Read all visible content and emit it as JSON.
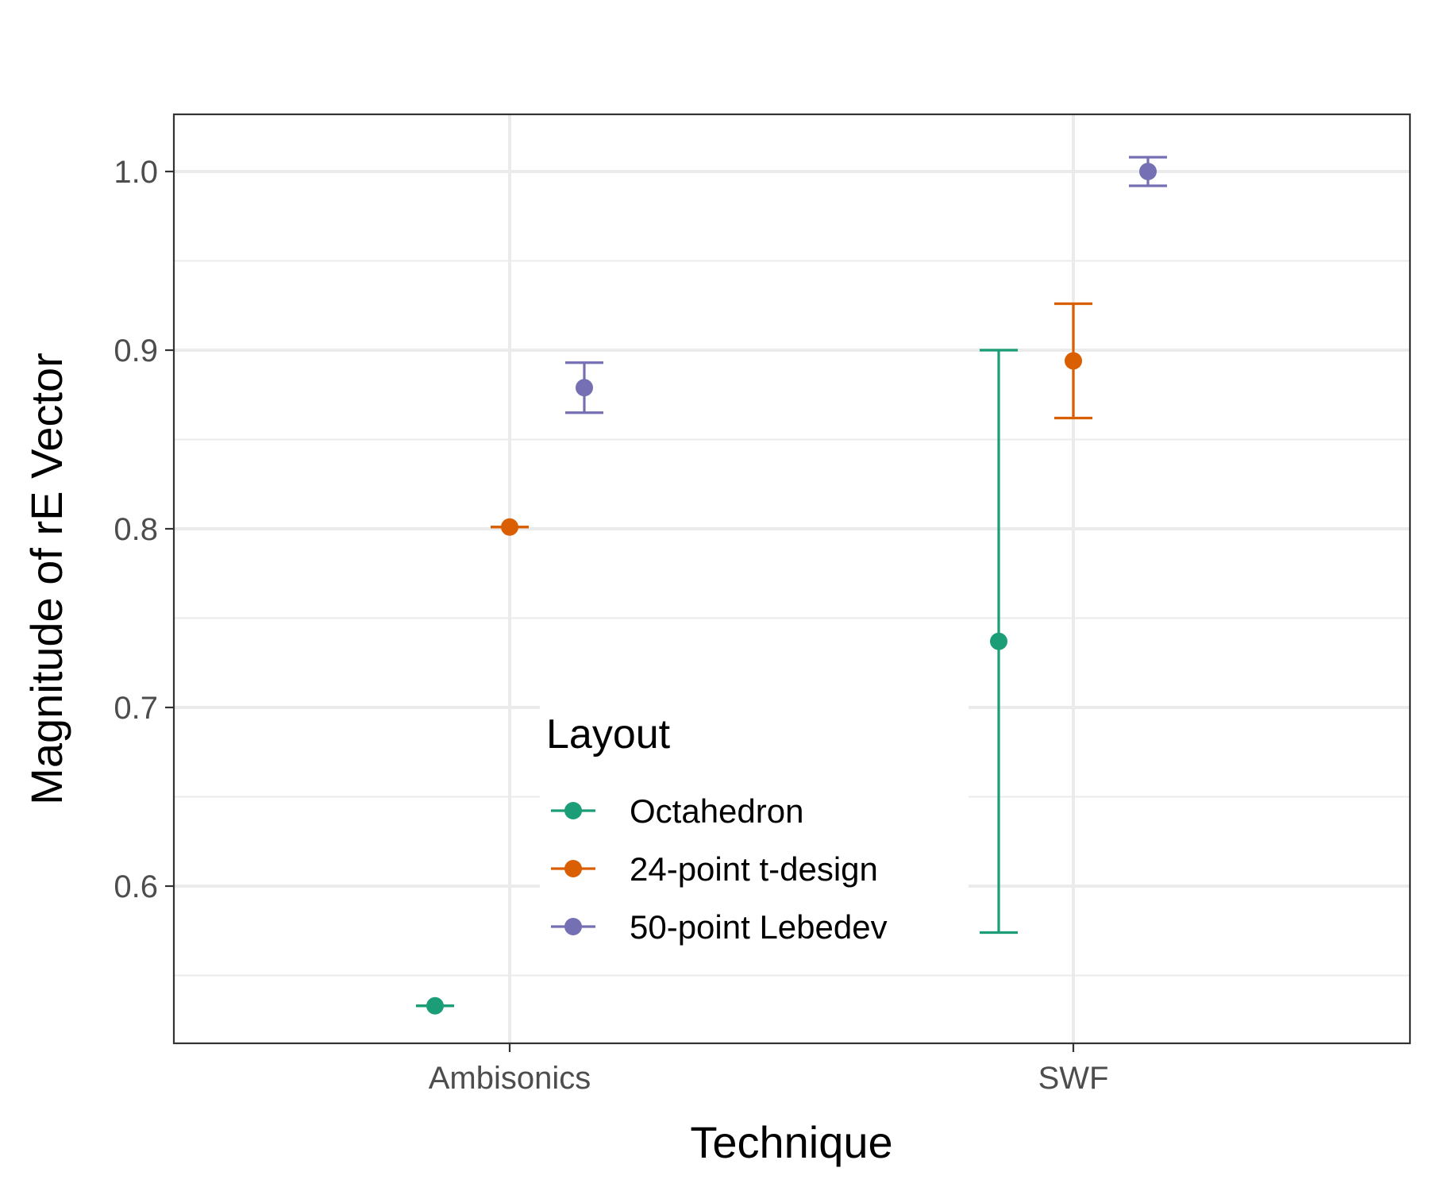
{
  "chart_data": {
    "type": "scatter",
    "subtype": "pointrange",
    "categories": [
      "Ambisonics",
      "SWF"
    ],
    "xlabel": "Technique",
    "ylabel": "Magnitude of rE Vector",
    "ylim": [
      0.512,
      1.032
    ],
    "yticks": [
      0.6,
      0.7,
      0.8,
      0.9,
      1.0
    ],
    "ytick_labels": [
      "0.6",
      "0.7",
      "0.8",
      "0.9",
      "1.0"
    ],
    "grid": true,
    "legend": {
      "title": "Layout",
      "placement": "inside-center"
    },
    "series": [
      {
        "name": "Octahedron",
        "color": "#1b9e77",
        "points": [
          {
            "category": "Ambisonics",
            "y": 0.533,
            "ymin": 0.533,
            "ymax": 0.533
          },
          {
            "category": "SWF",
            "y": 0.737,
            "ymin": 0.574,
            "ymax": 0.9
          }
        ]
      },
      {
        "name": "24-point t-design",
        "color": "#d95f02",
        "points": [
          {
            "category": "Ambisonics",
            "y": 0.801,
            "ymin": 0.801,
            "ymax": 0.801
          },
          {
            "category": "SWF",
            "y": 0.894,
            "ymin": 0.862,
            "ymax": 0.926
          }
        ]
      },
      {
        "name": "50-point Lebedev",
        "color": "#7570b3",
        "points": [
          {
            "category": "Ambisonics",
            "y": 0.879,
            "ymin": 0.865,
            "ymax": 0.893
          },
          {
            "category": "SWF",
            "y": 1.0,
            "ymin": 0.992,
            "ymax": 1.008
          }
        ]
      }
    ]
  }
}
